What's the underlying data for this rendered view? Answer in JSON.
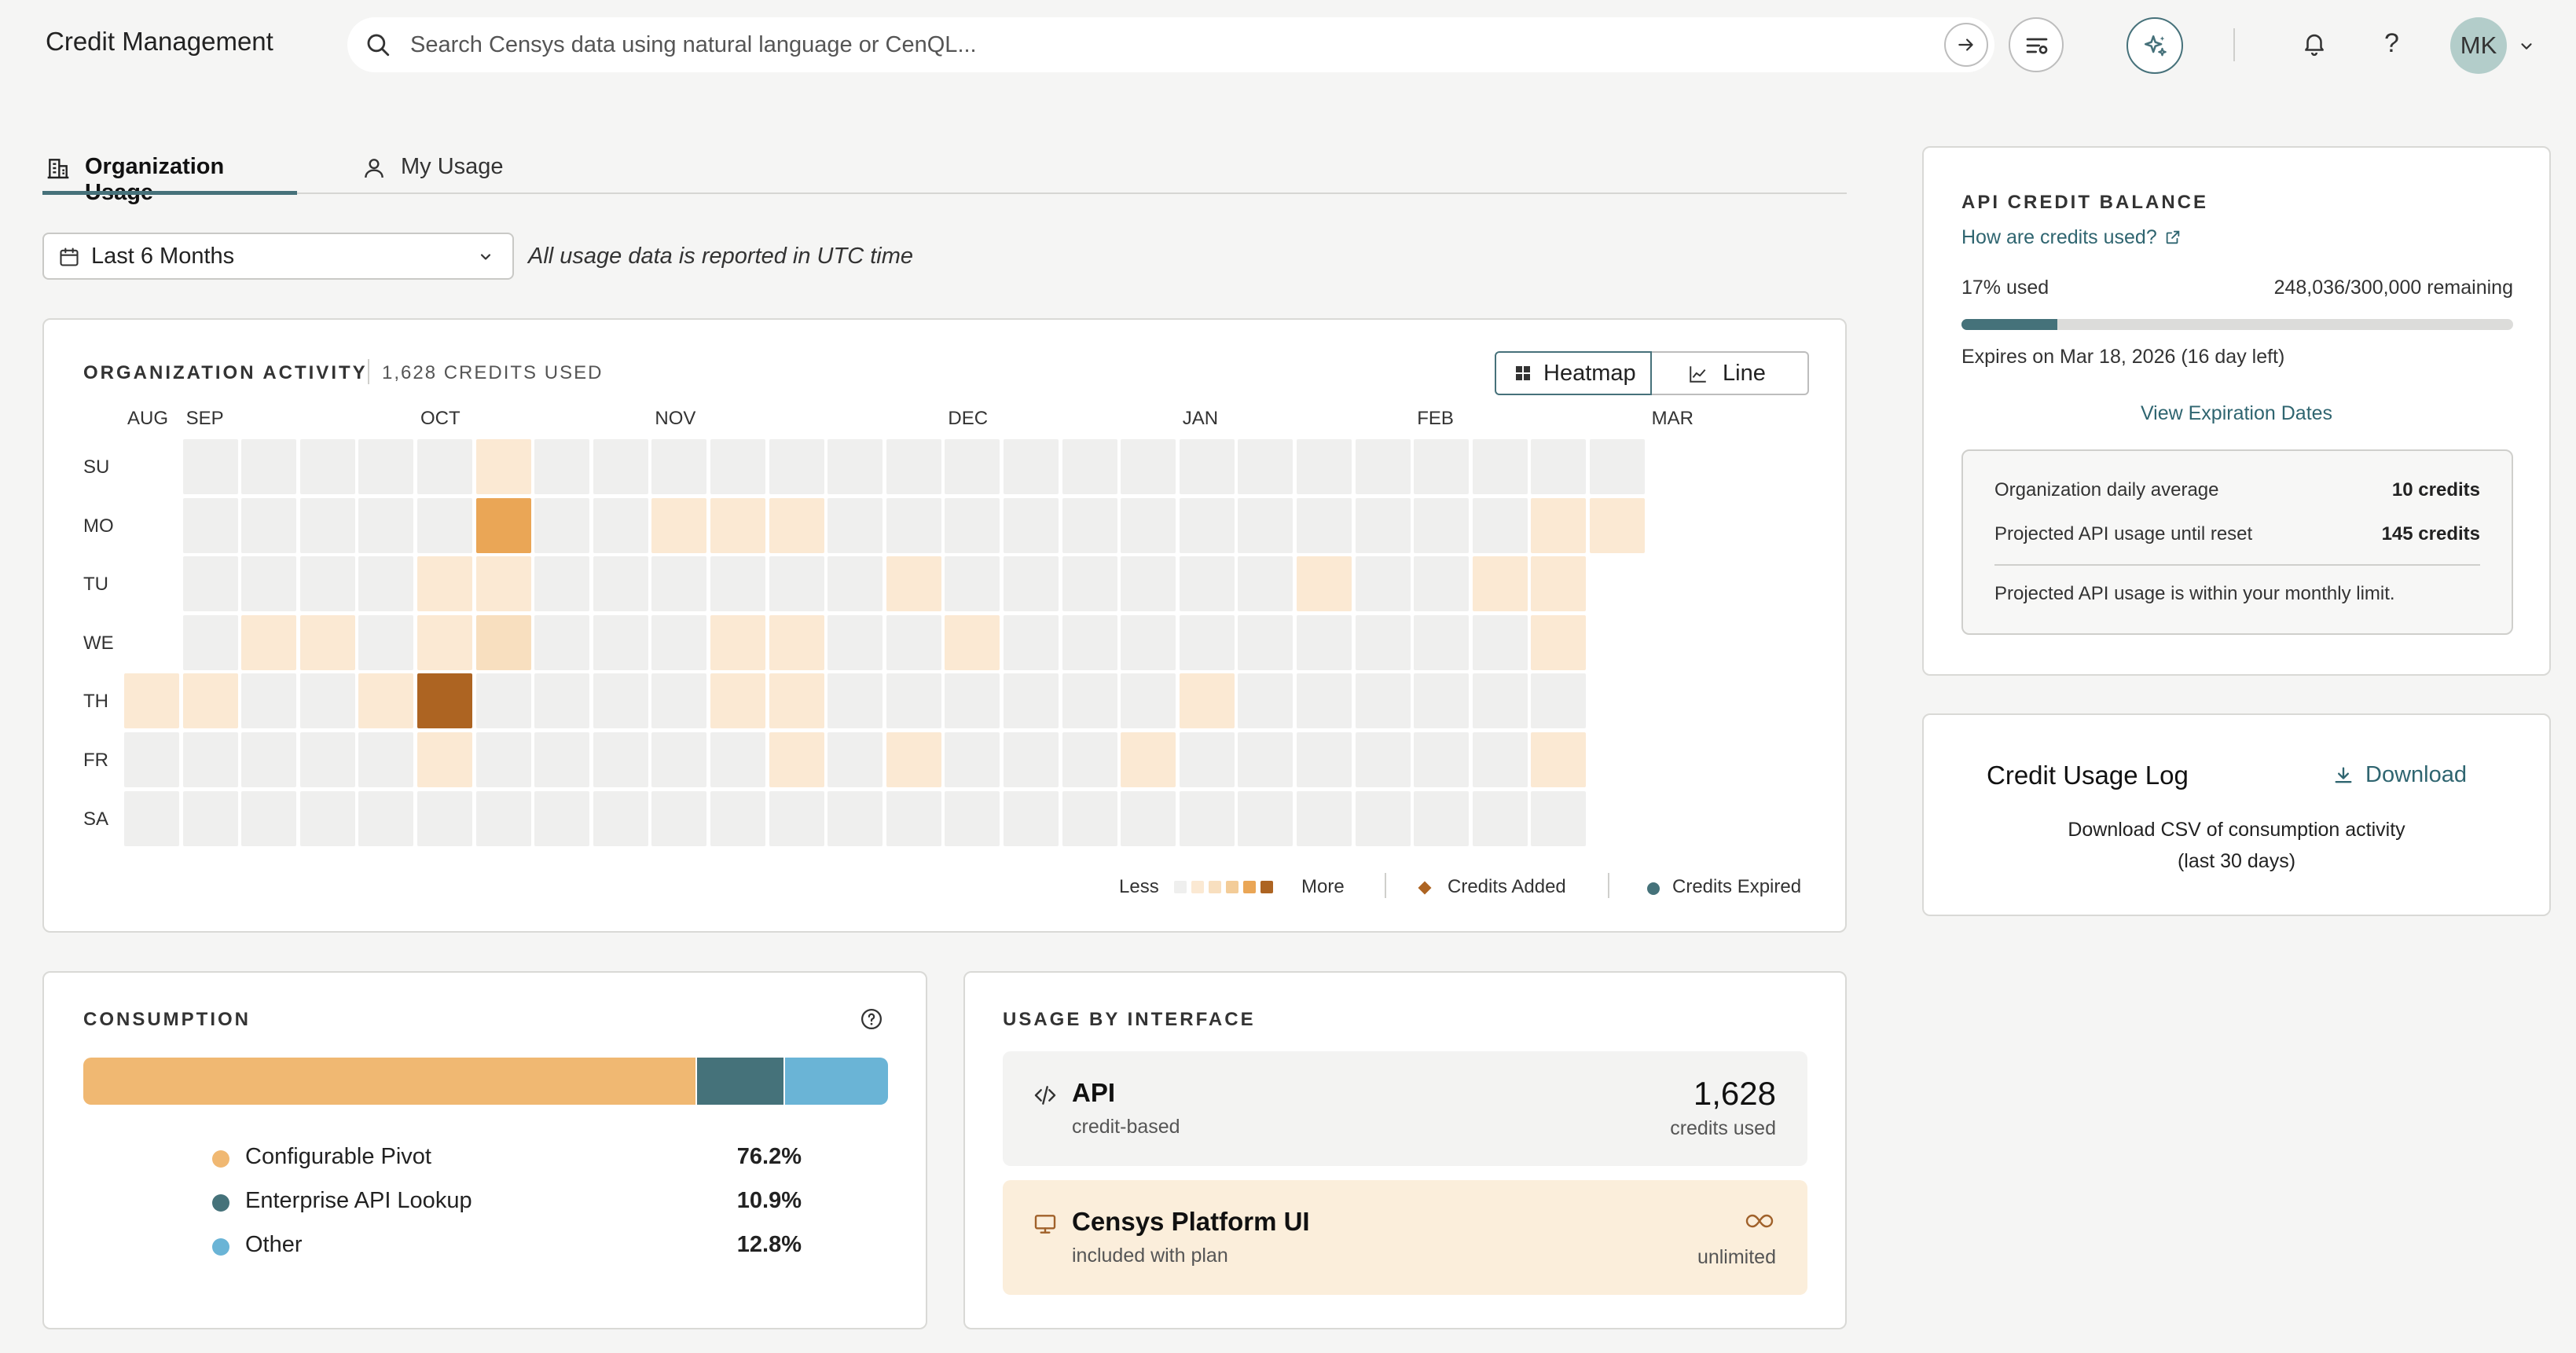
{
  "app": {
    "title": "Credit Management"
  },
  "search": {
    "placeholder": "Search Censys data using natural language or CenQL..."
  },
  "user": {
    "initials": "MK"
  },
  "tabs": [
    {
      "label": "Organization Usage",
      "active": true
    },
    {
      "label": "My Usage",
      "active": false
    }
  ],
  "filters": {
    "range": "Last 6 Months",
    "note": "All usage data is reported in UTC time"
  },
  "activity": {
    "title": "ORGANIZATION ACTIVITY",
    "credits_used": "1,628 CREDITS USED",
    "toggle": {
      "heatmap": "Heatmap",
      "line": "Line",
      "active": "heatmap"
    },
    "months": [
      {
        "label": "AUG",
        "week": 0
      },
      {
        "label": "SEP",
        "week": 1
      },
      {
        "label": "OCT",
        "week": 5
      },
      {
        "label": "NOV",
        "week": 9
      },
      {
        "label": "DEC",
        "week": 14
      },
      {
        "label": "JAN",
        "week": 18
      },
      {
        "label": "FEB",
        "week": 22
      },
      {
        "label": "MAR",
        "week": 26
      }
    ],
    "days": [
      "SU",
      "MO",
      "TU",
      "WE",
      "TH",
      "FR",
      "SA"
    ],
    "week_count": 27,
    "weeks": [
      [
        null,
        null,
        null,
        null,
        1,
        0,
        0
      ],
      [
        0,
        0,
        0,
        0,
        1,
        0,
        0
      ],
      [
        0,
        0,
        0,
        1,
        0,
        0,
        0
      ],
      [
        0,
        0,
        0,
        1,
        0,
        0,
        0
      ],
      [
        0,
        0,
        0,
        0,
        1,
        0,
        0
      ],
      [
        0,
        0,
        1,
        1,
        5,
        1,
        0
      ],
      [
        1,
        4,
        1,
        2,
        0,
        0,
        0
      ],
      [
        0,
        0,
        0,
        0,
        0,
        0,
        0
      ],
      [
        0,
        0,
        0,
        0,
        0,
        0,
        0
      ],
      [
        0,
        1,
        0,
        0,
        0,
        0,
        0
      ],
      [
        0,
        1,
        0,
        1,
        1,
        0,
        0
      ],
      [
        0,
        1,
        0,
        1,
        1,
        1,
        0
      ],
      [
        0,
        0,
        0,
        0,
        0,
        0,
        0
      ],
      [
        0,
        0,
        1,
        0,
        0,
        1,
        0
      ],
      [
        0,
        0,
        0,
        1,
        0,
        0,
        0
      ],
      [
        0,
        0,
        0,
        0,
        0,
        0,
        0
      ],
      [
        0,
        0,
        0,
        0,
        0,
        0,
        0
      ],
      [
        0,
        0,
        0,
        0,
        0,
        1,
        0
      ],
      [
        0,
        0,
        0,
        0,
        1,
        0,
        0
      ],
      [
        0,
        0,
        0,
        0,
        0,
        0,
        0
      ],
      [
        0,
        0,
        1,
        0,
        0,
        0,
        0
      ],
      [
        0,
        0,
        0,
        0,
        0,
        0,
        0
      ],
      [
        0,
        0,
        0,
        0,
        0,
        0,
        0
      ],
      [
        0,
        0,
        1,
        0,
        0,
        0,
        0
      ],
      [
        0,
        1,
        1,
        1,
        0,
        1,
        0
      ],
      [
        0,
        1,
        null,
        null,
        null,
        null,
        null
      ],
      [
        null,
        null,
        null,
        null,
        null,
        null,
        null
      ]
    ],
    "legend": {
      "less": "Less",
      "more": "More",
      "added": "Credits Added",
      "expired": "Credits Expired"
    },
    "colors": [
      "#efefee",
      "#fbe9d3",
      "#f8dfbf",
      "#f3cc98",
      "#eaa656",
      "#ad6422"
    ]
  },
  "consumption": {
    "title": "CONSUMPTION",
    "items": [
      {
        "name": "Configurable Pivot",
        "pct": "76.2%",
        "value": 76.2,
        "color": "#f0b872"
      },
      {
        "name": "Enterprise API Lookup",
        "pct": "10.9%",
        "value": 10.9,
        "color": "#45727a"
      },
      {
        "name": "Other",
        "pct": "12.8%",
        "value": 12.8,
        "color": "#6ab4d6"
      }
    ]
  },
  "interface": {
    "title": "USAGE BY INTERFACE",
    "api": {
      "name": "API",
      "sub": "credit-based",
      "value": "1,628",
      "unit": "credits used"
    },
    "ui": {
      "name": "Censys Platform UI",
      "sub": "included with plan",
      "unit": "unlimited"
    }
  },
  "balance": {
    "title": "API CREDIT BALANCE",
    "link": "How are credits used?",
    "used": "17% used",
    "used_fraction": 0.174,
    "remaining": "248,036/300,000 remaining",
    "expires": "Expires on Mar 18, 2026 (16 day left)",
    "view_dates": "View Expiration Dates",
    "daily_avg_label": "Organization daily average",
    "daily_avg_value": "10 credits",
    "projected_label": "Projected API usage until reset",
    "projected_value": "145 credits",
    "note": "Projected API usage is within your monthly limit."
  },
  "log": {
    "title": "Credit Usage Log",
    "download": "Download",
    "desc1": "Download CSV of consumption activity",
    "desc2": "(last 30 days)"
  }
}
